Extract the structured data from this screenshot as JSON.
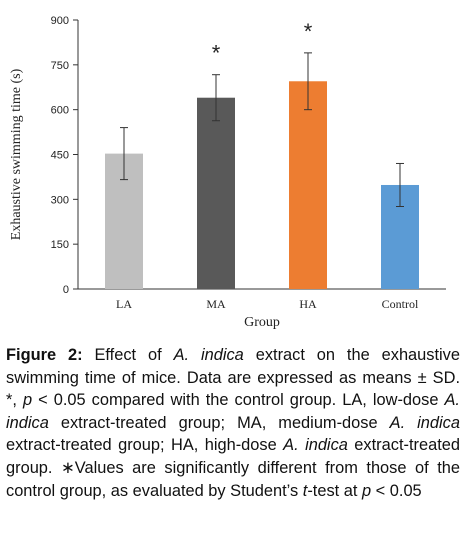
{
  "chart_data": {
    "type": "bar",
    "categories": [
      "LA",
      "MA",
      "HA",
      "Control"
    ],
    "values": [
      453,
      640,
      695,
      348
    ],
    "errors": [
      87,
      77,
      95,
      72
    ],
    "colors": [
      "#bfbfbf",
      "#595959",
      "#ed7d31",
      "#5b9bd5"
    ],
    "significance": [
      "",
      "*",
      "*",
      ""
    ],
    "ylabel": "Exhaustive swimming time (s)",
    "xlabel": "Group",
    "ylim": [
      0,
      900
    ],
    "yticks": [
      "0",
      "150",
      "300",
      "450",
      "600",
      "750",
      "900"
    ],
    "grid": false,
    "legend": "none"
  },
  "caption": {
    "parts": [
      {
        "text": "Figure 2:",
        "style": "bold"
      },
      {
        "text": " Effect of ",
        "style": "normal"
      },
      {
        "text": "A. indica",
        "style": "italic"
      },
      {
        "text": " extract on the exhaustive swimming time of mice. Data are expressed as means ± SD. *, ",
        "style": "normal"
      },
      {
        "text": "p",
        "style": "italic"
      },
      {
        "text": " < 0.05 compared with the control group. LA, low-dose ",
        "style": "normal"
      },
      {
        "text": "A. indica",
        "style": "italic"
      },
      {
        "text": " extract-treated group; MA, medium-dose ",
        "style": "normal"
      },
      {
        "text": "A. indica",
        "style": "italic"
      },
      {
        "text": " extract-treated group; HA, high-dose ",
        "style": "normal"
      },
      {
        "text": "A. indica",
        "style": "italic"
      },
      {
        "text": " extract-treated group. ∗Values are significantly different from those of the control group, as evaluated by Student’s ",
        "style": "normal"
      },
      {
        "text": "t",
        "style": "italic"
      },
      {
        "text": "-test at ",
        "style": "normal"
      },
      {
        "text": "p",
        "style": "italic"
      },
      {
        "text": " < 0.05",
        "style": "normal"
      }
    ]
  }
}
